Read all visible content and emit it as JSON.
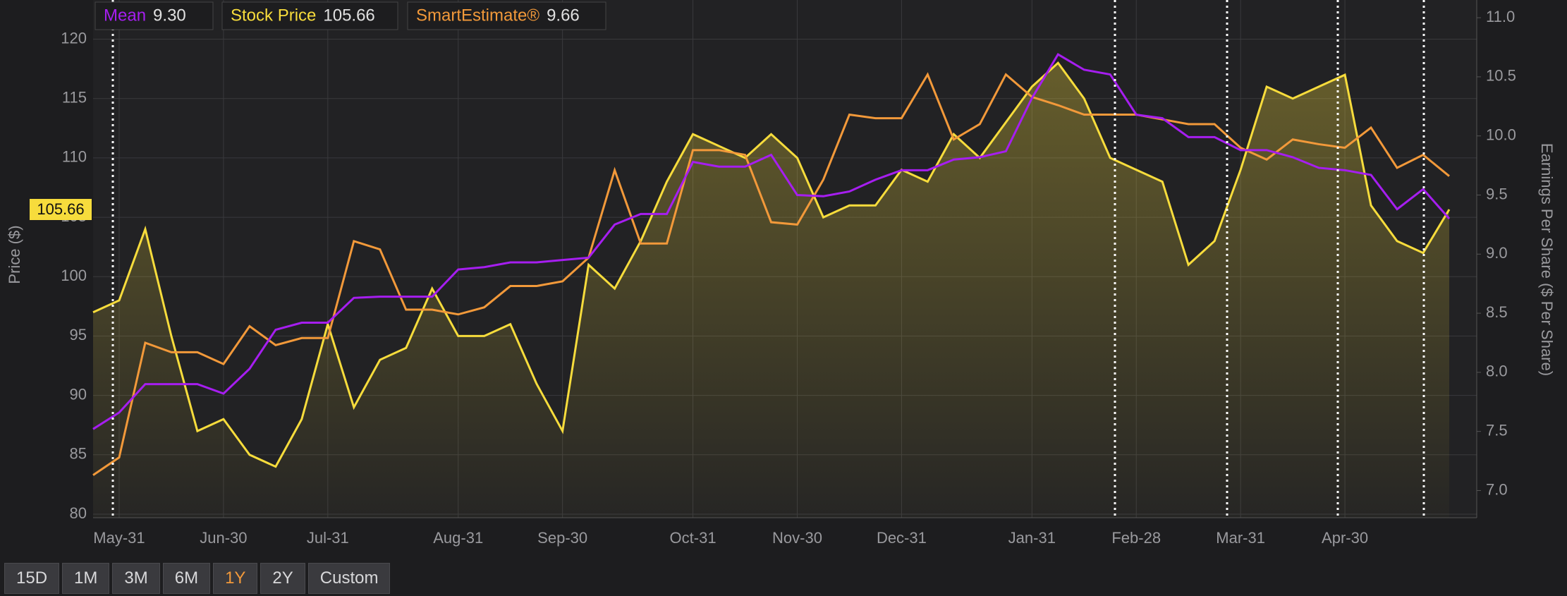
{
  "chart_data": {
    "type": "line",
    "y_label": "Price ($)",
    "y2_label": "Earnings Per Share ($ Per Share)",
    "categories": [
      null,
      "May-31",
      null,
      null,
      null,
      "Jun-30",
      null,
      null,
      null,
      "Jul-31",
      null,
      null,
      null,
      null,
      "Aug-31",
      null,
      null,
      null,
      "Sep-30",
      null,
      null,
      null,
      null,
      "Oct-31",
      null,
      null,
      null,
      "Nov-30",
      null,
      null,
      null,
      "Dec-31",
      null,
      null,
      null,
      null,
      "Jan-31",
      null,
      null,
      null,
      "Feb-28",
      null,
      null,
      null,
      "Mar-31",
      null,
      null,
      null,
      "Apr-30",
      null,
      null,
      null,
      null
    ],
    "series": [
      {
        "name": "Mean",
        "color": "#a61ef0",
        "axis": "y2",
        "values": [
          7.52,
          7.66,
          7.9,
          7.9,
          7.9,
          7.82,
          8.03,
          8.36,
          8.42,
          8.42,
          8.63,
          8.64,
          8.64,
          8.64,
          8.87,
          8.89,
          8.93,
          8.93,
          8.95,
          8.97,
          9.25,
          9.34,
          9.34,
          9.78,
          9.74,
          9.74,
          9.84,
          9.5,
          9.49,
          9.53,
          9.63,
          9.71,
          9.71,
          9.8,
          9.82,
          9.87,
          10.32,
          10.69,
          10.56,
          10.52,
          10.18,
          10.15,
          9.99,
          9.99,
          9.88,
          9.88,
          9.82,
          9.73,
          9.71,
          9.67,
          9.38,
          9.55,
          9.3
        ]
      },
      {
        "name": "Stock Price",
        "color": "#f7dc3c",
        "axis": "y",
        "fill": true,
        "values": [
          97,
          98,
          104,
          95,
          87,
          88,
          85,
          84,
          88,
          96,
          89,
          93,
          94,
          99,
          95,
          95,
          96,
          91,
          87,
          101,
          99,
          103,
          108,
          112,
          111,
          110,
          112,
          110,
          105,
          106,
          106,
          109,
          108,
          112,
          110,
          113,
          116,
          118,
          115,
          110,
          109,
          108,
          101,
          103,
          109,
          116,
          115,
          116,
          117,
          106,
          103,
          102,
          105.66
        ]
      },
      {
        "name": "SmartEstimate®",
        "color": "#f2993a",
        "axis": "y2",
        "values": [
          7.13,
          7.28,
          8.25,
          8.17,
          8.17,
          8.07,
          8.39,
          8.23,
          8.29,
          8.29,
          9.11,
          9.04,
          8.53,
          8.53,
          8.49,
          8.55,
          8.73,
          8.73,
          8.77,
          8.97,
          9.71,
          9.09,
          9.09,
          9.88,
          9.88,
          9.84,
          9.27,
          9.25,
          9.63,
          10.18,
          10.15,
          10.15,
          10.52,
          9.97,
          10.1,
          10.52,
          10.33,
          10.26,
          10.18,
          10.18,
          10.18,
          10.14,
          10.1,
          10.1,
          9.9,
          9.8,
          9.97,
          9.93,
          9.9,
          10.07,
          9.73,
          9.84,
          9.66
        ]
      }
    ],
    "legend_values": [
      "9.30",
      "105.66",
      "9.66"
    ],
    "ylim": [
      79.7,
      123.3
    ],
    "yticks": [
      80,
      85,
      90,
      95,
      100,
      105,
      110,
      115,
      120
    ],
    "y2lim": [
      6.77,
      11.15
    ],
    "y2ticks": [
      {
        "value": 7,
        "label": "7.0"
      },
      7.5,
      {
        "value": 8,
        "label": "8.0"
      },
      8.5,
      {
        "value": 9,
        "label": "9.0"
      },
      9.5,
      {
        "value": 10,
        "label": "10.0"
      },
      10.5,
      {
        "value": 11,
        "label": "11.0"
      }
    ],
    "grid": true,
    "range_buttons": [
      "15D",
      "1M",
      "3M",
      "6M",
      "1Y",
      "2Y",
      "Custom"
    ],
    "selected_range": "1Y"
  }
}
